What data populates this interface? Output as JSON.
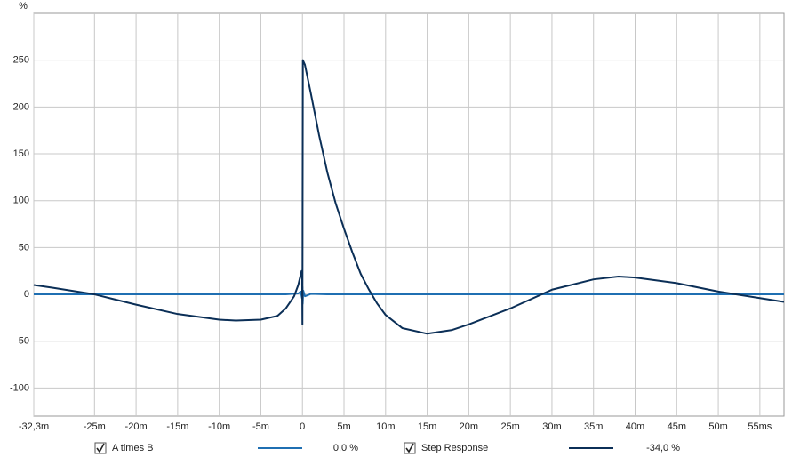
{
  "chart_data": {
    "type": "line",
    "y_unit": "%",
    "xlim": [
      -32.3,
      57.9
    ],
    "ylim": [
      -130,
      300
    ],
    "xticks": [
      {
        "value": -32.3,
        "label": "-32,3m"
      },
      {
        "value": -25,
        "label": "-25m"
      },
      {
        "value": -20,
        "label": "-20m"
      },
      {
        "value": -15,
        "label": "-15m"
      },
      {
        "value": -10,
        "label": "-10m"
      },
      {
        "value": -5,
        "label": "-5m"
      },
      0,
      {
        "value": 5,
        "label": "5m"
      },
      {
        "value": 10,
        "label": "10m"
      },
      {
        "value": 15,
        "label": "15m"
      },
      {
        "value": 20,
        "label": "20m"
      },
      {
        "value": 25,
        "label": "25m"
      },
      {
        "value": 30,
        "label": "30m"
      },
      {
        "value": 35,
        "label": "35m"
      },
      {
        "value": 40,
        "label": "40m"
      },
      {
        "value": 45,
        "label": "45m"
      },
      {
        "value": 50,
        "label": "50m"
      },
      {
        "value": 55,
        "label": "55ms"
      }
    ],
    "yticks": [
      -100,
      -50,
      0,
      50,
      100,
      150,
      200,
      250
    ],
    "grid": true,
    "series": [
      {
        "name": "A times B",
        "color": "#1f6fb2",
        "readout": "0,0 %",
        "x": [
          -32.3,
          -2,
          -0.5,
          -0.2,
          -0.05,
          0,
          0.03,
          0.1,
          0.3,
          1,
          3,
          57.9
        ],
        "values": [
          0,
          0,
          1,
          3,
          -4,
          8,
          -10,
          4,
          -2,
          0.5,
          0,
          0
        ]
      },
      {
        "name": "Step Response",
        "color": "#0b2f57",
        "readout": "-34,0 %",
        "x": [
          -32.3,
          -30,
          -25,
          -20,
          -15,
          -10,
          -8,
          -5,
          -3,
          -2,
          -1,
          -0.5,
          -0.1,
          -0.03,
          0,
          0.02,
          0.05,
          0.3,
          1,
          2,
          3,
          4,
          5,
          6,
          7,
          8,
          9,
          10,
          12,
          15,
          18,
          20,
          25,
          30,
          35,
          38,
          40,
          45,
          50,
          55,
          57.9
        ],
        "values": [
          10,
          7,
          0,
          -11,
          -21,
          -27,
          -28,
          -27,
          -23,
          -15,
          -2,
          10,
          25,
          15,
          -32,
          100,
          250,
          245,
          215,
          170,
          130,
          97,
          70,
          45,
          22,
          5,
          -10,
          -22,
          -36,
          -42,
          -38,
          -32,
          -15,
          5,
          16,
          19,
          18,
          12,
          3,
          -4,
          -8
        ]
      }
    ]
  }
}
